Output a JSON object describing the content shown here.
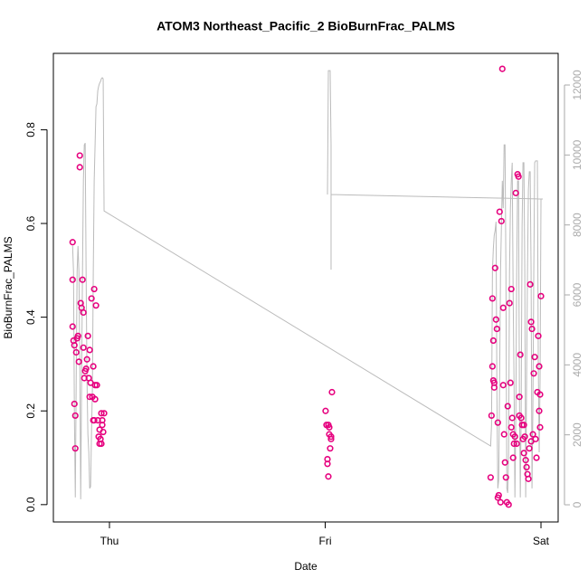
{
  "chart_data": {
    "type": "scatter",
    "title": "ATOM3 Northeast_Pacific_2 BioBurnFrac_PALMS",
    "xlabel": "Date",
    "ylabel": "BioBurnFrac_PALMS",
    "xlim": [
      -6.24,
      49.91
    ],
    "xticks": [
      {
        "value": 0,
        "label": "Thu"
      },
      {
        "value": 24,
        "label": "Fri"
      },
      {
        "value": 48,
        "label": "Sat"
      }
    ],
    "ylim": [
      -0.037,
      0.963
    ],
    "yticks": [
      {
        "value": 0,
        "label": "0.0"
      },
      0.2,
      0.4,
      0.6,
      0.8
    ],
    "y2lim": [
      -491,
      12905
    ],
    "y2ticks": [
      0,
      2000,
      4000,
      6000,
      8000,
      10000,
      12000
    ],
    "series": [
      {
        "color": "#e6007e",
        "x": [
          -4.1,
          -4.1,
          -4.1,
          -4.0,
          -3.9,
          -3.9,
          -3.8,
          -3.8,
          -3.7,
          -3.6,
          -3.5,
          -3.4,
          -3.3,
          -3.3,
          -3.2,
          -3.1,
          -3.0,
          -2.9,
          -2.9,
          -2.8,
          -2.7,
          -2.6,
          -2.5,
          -2.4,
          -2.3,
          -2.2,
          -2.2,
          -2.1,
          -2.0,
          -1.9,
          -1.8,
          -1.8,
          -1.7,
          -1.7,
          -1.6,
          -1.6,
          -1.5,
          -1.4,
          -1.3,
          -1.2,
          -1.1,
          -1.0,
          -0.9,
          -0.8,
          -0.8,
          -0.7,
          -0.6,
          -0.9,
          -1.1,
          24.04,
          24.14,
          24.25,
          24.25,
          24.35,
          24.35,
          24.45,
          24.55,
          24.65,
          24.75,
          24.65,
          24.45,
          42.4,
          42.5,
          42.6,
          42.6,
          42.7,
          42.7,
          42.8,
          42.8,
          42.9,
          43.0,
          43.1,
          43.2,
          43.2,
          43.3,
          43.4,
          43.5,
          43.6,
          43.7,
          43.8,
          43.8,
          43.9,
          44.0,
          44.1,
          44.2,
          44.3,
          44.4,
          44.5,
          44.6,
          44.7,
          44.7,
          44.8,
          44.9,
          44.9,
          45.0,
          45.1,
          45.2,
          45.3,
          45.4,
          45.5,
          45.6,
          45.6,
          45.7,
          45.8,
          45.9,
          46.0,
          46.1,
          46.1,
          46.2,
          46.3,
          46.4,
          46.5,
          46.6,
          46.7,
          46.8,
          46.9,
          46.9,
          47.0,
          47.1,
          47.2,
          47.3,
          47.4,
          47.5,
          47.6,
          47.7,
          47.8,
          47.8,
          47.9,
          48.0,
          47.9
        ],
        "values": [
          0.56,
          0.48,
          0.38,
          0.35,
          0.34,
          0.215,
          0.19,
          0.12,
          0.325,
          0.355,
          0.36,
          0.305,
          0.745,
          0.72,
          0.43,
          0.42,
          0.48,
          0.41,
          0.335,
          0.27,
          0.285,
          0.29,
          0.31,
          0.36,
          0.27,
          0.23,
          0.33,
          0.26,
          0.44,
          0.23,
          0.18,
          0.295,
          0.46,
          0.18,
          0.255,
          0.225,
          0.425,
          0.255,
          0.18,
          0.145,
          0.13,
          0.14,
          0.195,
          0.18,
          0.17,
          0.155,
          0.195,
          0.13,
          0.16,
          0.2,
          0.17,
          0.097,
          0.087,
          0.17,
          0.06,
          0.15,
          0.12,
          0.145,
          0.24,
          0.14,
          0.165,
          0.058,
          0.19,
          0.295,
          0.44,
          0.35,
          0.265,
          0.26,
          0.25,
          0.505,
          0.395,
          0.375,
          0.175,
          0.015,
          0.02,
          0.625,
          0.005,
          0.605,
          0.93,
          0.42,
          0.255,
          0.15,
          0.09,
          0.058,
          0.005,
          0.21,
          0.0,
          0.43,
          0.26,
          0.46,
          0.165,
          0.185,
          0.15,
          0.1,
          0.13,
          0.145,
          0.665,
          0.13,
          0.705,
          0.7,
          0.19,
          0.23,
          0.32,
          0.185,
          0.17,
          0.14,
          0.17,
          0.11,
          0.145,
          0.095,
          0.08,
          0.065,
          0.055,
          0.12,
          0.47,
          0.135,
          0.39,
          0.375,
          0.15,
          0.28,
          0.315,
          0.14,
          0.1,
          0.24,
          0.36,
          0.295,
          0.2,
          0.235,
          0.445,
          0.165
        ]
      },
      {
        "type": "line",
        "axis": "y2",
        "color": "#bbbbbb",
        "x": [
          -4.1,
          -4.0,
          -3.9,
          -3.8,
          -3.7,
          -3.6,
          -3.5,
          -3.4,
          -3.3,
          -3.2,
          -3.1,
          -3.0,
          -2.9,
          -2.8,
          -2.7,
          -2.6,
          -2.5,
          -2.4,
          -2.3,
          -2.2,
          -2.1,
          -2.0,
          -1.9,
          -1.8,
          -1.7,
          -1.6,
          -1.5,
          -1.4,
          -1.3,
          -1.2,
          -1.1,
          -1.0,
          -0.9,
          -0.8,
          -0.7,
          -0.6,
          42.4,
          42.5,
          42.6,
          42.7,
          42.8,
          42.9,
          43.0,
          43.1,
          43.2,
          43.3,
          43.4,
          43.5,
          43.6,
          43.7,
          43.8,
          43.9,
          44.0,
          44.1,
          44.2,
          44.3,
          44.4,
          44.5,
          44.6,
          44.7,
          44.8,
          44.9,
          45.0,
          45.1,
          45.2,
          45.3,
          45.4,
          45.5,
          45.6,
          45.7,
          45.8,
          45.9,
          46.0,
          46.1,
          46.2,
          46.3,
          46.4,
          46.5,
          46.6,
          46.7,
          46.8,
          46.9,
          47.0,
          47.1,
          47.2,
          47.3,
          47.4,
          47.5,
          47.6,
          47.7,
          47.8,
          47.9,
          48.0,
          48.2,
          null,
          24.25,
          24.35,
          24.55,
          24.65,
          24.65,
          null,
          24.65,
          48.2
        ],
        "values": [
          7400,
          6670,
          2530,
          210,
          3570,
          6670,
          7400,
          6670,
          4090,
          160,
          3570,
          6670,
          9260,
          10290,
          10340,
          6670,
          3570,
          2020,
          1500,
          470,
          520,
          2020,
          3310,
          6670,
          9260,
          10290,
          11380,
          11460,
          11840,
          11970,
          12050,
          12100,
          12180,
          12210,
          12180,
          8400,
          1680,
          2280,
          6670,
          7320,
          7710,
          7840,
          8090,
          3050,
          470,
          720,
          3570,
          6670,
          7960,
          9260,
          8480,
          10290,
          10290,
          6670,
          470,
          340,
          1500,
          6670,
          8480,
          9260,
          9780,
          6150,
          3570,
          210,
          2530,
          6670,
          9260,
          9260,
          3310,
          210,
          2790,
          7960,
          9780,
          9780,
          6670,
          210,
          3570,
          6670,
          9000,
          9520,
          9520,
          6670,
          470,
          2790,
          6670,
          9780,
          9830,
          9830,
          9830,
          4090,
          1500,
          3570,
          8740,
          8740,
          null,
          8870,
          12410,
          12410,
          10290,
          6720,
          null,
          8870,
          8740
        ]
      }
    ]
  }
}
